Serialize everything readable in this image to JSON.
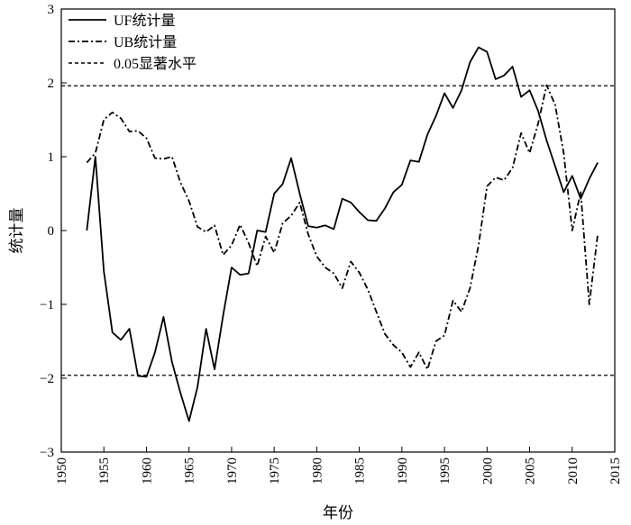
{
  "chart_data": {
    "type": "line",
    "xlabel": "年份",
    "ylabel": "统计量",
    "xlim": [
      1950,
      2015
    ],
    "ylim": [
      -3,
      3
    ],
    "x_ticks": [
      1950,
      1955,
      1960,
      1965,
      1970,
      1975,
      1980,
      1985,
      1990,
      1995,
      2000,
      2005,
      2010,
      2015
    ],
    "y_ticks": [
      {
        "value": -3,
        "label": "−3"
      },
      {
        "value": -2,
        "label": "−2"
      },
      {
        "value": -1,
        "label": "−1"
      },
      {
        "value": 0,
        "label": "0"
      },
      {
        "value": 1,
        "label": "1"
      },
      {
        "value": 2,
        "label": "2"
      },
      {
        "value": 3,
        "label": "3"
      }
    ],
    "legend_position": "top-left",
    "x": [
      1953,
      1954,
      1955,
      1956,
      1957,
      1958,
      1959,
      1960,
      1961,
      1962,
      1963,
      1964,
      1965,
      1966,
      1967,
      1968,
      1969,
      1970,
      1971,
      1972,
      1973,
      1974,
      1975,
      1976,
      1977,
      1978,
      1979,
      1980,
      1981,
      1982,
      1983,
      1984,
      1985,
      1986,
      1987,
      1988,
      1989,
      1990,
      1991,
      1992,
      1993,
      1994,
      1995,
      1996,
      1997,
      1998,
      1999,
      2000,
      2001,
      2002,
      2003,
      2004,
      2005,
      2006,
      2007,
      2008,
      2009,
      2010,
      2011,
      2012,
      2013
    ],
    "series": [
      {
        "name": "UF统计量",
        "style": "solid",
        "values": [
          0.0,
          1.0,
          -0.55,
          -1.38,
          -1.48,
          -1.33,
          -1.97,
          -1.98,
          -1.65,
          -1.17,
          -1.78,
          -2.2,
          -2.58,
          -2.12,
          -1.33,
          -1.88,
          -1.15,
          -0.5,
          -0.6,
          -0.58,
          0.0,
          -0.02,
          0.5,
          0.63,
          0.98,
          0.5,
          0.06,
          0.04,
          0.07,
          0.02,
          0.43,
          0.38,
          0.25,
          0.14,
          0.13,
          0.3,
          0.52,
          0.62,
          0.95,
          0.93,
          1.3,
          1.55,
          1.86,
          1.66,
          1.9,
          2.28,
          2.48,
          2.42,
          2.05,
          2.1,
          2.22,
          1.81,
          1.9,
          1.62,
          1.22,
          0.87,
          0.52,
          0.74,
          0.43,
          0.7,
          0.92
        ]
      },
      {
        "name": "UB统计量",
        "style": "dashdot",
        "values": [
          0.92,
          1.05,
          1.5,
          1.6,
          1.52,
          1.34,
          1.35,
          1.25,
          0.98,
          0.97,
          1.0,
          0.65,
          0.4,
          0.05,
          -0.02,
          0.07,
          -0.33,
          -0.2,
          0.08,
          -0.17,
          -0.48,
          -0.08,
          -0.3,
          0.1,
          0.2,
          0.38,
          -0.05,
          -0.35,
          -0.5,
          -0.58,
          -0.78,
          -0.42,
          -0.57,
          -0.8,
          -1.1,
          -1.4,
          -1.55,
          -1.65,
          -1.85,
          -1.65,
          -1.88,
          -1.5,
          -1.42,
          -0.95,
          -1.1,
          -0.78,
          -0.2,
          0.6,
          0.72,
          0.68,
          0.85,
          1.32,
          1.05,
          1.45,
          1.97,
          1.7,
          1.05,
          0.0,
          0.52,
          -1.0,
          -0.05
        ]
      },
      {
        "name": "0.05显著水平",
        "style": "dashed",
        "levels": [
          1.96,
          -1.96
        ]
      }
    ]
  }
}
